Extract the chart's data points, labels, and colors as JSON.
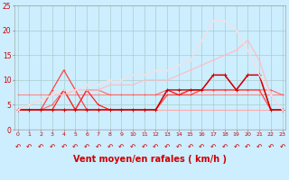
{
  "x": [
    0,
    1,
    2,
    3,
    4,
    5,
    6,
    7,
    8,
    9,
    10,
    11,
    12,
    13,
    14,
    15,
    16,
    17,
    18,
    19,
    20,
    21,
    22,
    23
  ],
  "series": [
    {
      "color": "#ffaaaa",
      "linewidth": 0.8,
      "markersize": 2.0,
      "y": [
        4,
        4,
        4,
        4,
        4,
        4,
        4,
        4,
        4,
        4,
        4,
        4,
        4,
        4,
        4,
        4,
        4,
        4,
        4,
        4,
        4,
        4,
        4,
        4
      ]
    },
    {
      "color": "#ff8888",
      "linewidth": 0.8,
      "markersize": 2.0,
      "y": [
        7,
        7,
        7,
        7,
        7,
        7,
        7,
        7,
        7,
        7,
        7,
        7,
        7,
        7,
        7,
        7,
        7,
        7,
        7,
        7,
        7,
        7,
        7,
        7
      ]
    },
    {
      "color": "#ff6666",
      "linewidth": 0.8,
      "markersize": 2.0,
      "y": [
        4,
        4,
        4,
        5,
        8,
        4,
        8,
        8,
        7,
        7,
        7,
        7,
        7,
        8,
        7,
        8,
        8,
        8,
        8,
        8,
        8,
        8,
        8,
        7
      ]
    },
    {
      "color": "#ff4444",
      "linewidth": 0.9,
      "markersize": 2.0,
      "y": [
        4,
        4,
        4,
        8,
        12,
        8,
        4,
        4,
        4,
        4,
        4,
        4,
        4,
        7,
        7,
        7,
        8,
        8,
        8,
        8,
        8,
        8,
        4,
        4
      ]
    },
    {
      "color": "#ff2222",
      "linewidth": 0.9,
      "markersize": 2.0,
      "y": [
        4,
        4,
        4,
        4,
        8,
        4,
        8,
        5,
        4,
        4,
        4,
        4,
        4,
        8,
        7,
        8,
        8,
        11,
        11,
        8,
        11,
        11,
        4,
        4
      ]
    },
    {
      "color": "#cc0000",
      "linewidth": 1.0,
      "markersize": 2.5,
      "y": [
        4,
        4,
        4,
        4,
        4,
        4,
        4,
        4,
        4,
        4,
        4,
        4,
        4,
        8,
        8,
        8,
        8,
        11,
        11,
        8,
        11,
        11,
        4,
        4
      ]
    },
    {
      "color": "#ffbbbb",
      "linewidth": 0.8,
      "markersize": 2.0,
      "y": [
        4,
        5,
        6,
        7,
        7,
        8,
        8,
        8,
        9,
        9,
        9,
        10,
        10,
        10,
        11,
        12,
        13,
        14,
        15,
        16,
        18,
        14,
        7,
        4
      ]
    },
    {
      "color": "#ffdddd",
      "linewidth": 0.8,
      "markersize": 2.0,
      "y": [
        4,
        5,
        6,
        7,
        8,
        8,
        9,
        9,
        10,
        10,
        11,
        11,
        12,
        12,
        13,
        14,
        18,
        22,
        22,
        20,
        16,
        11,
        7,
        4
      ]
    }
  ],
  "xlabel": "Vent moyen/en rafales ( km/h )",
  "xlim": [
    -0.3,
    23.3
  ],
  "ylim": [
    0,
    25
  ],
  "xticks": [
    0,
    1,
    2,
    3,
    4,
    5,
    6,
    7,
    8,
    9,
    10,
    11,
    12,
    13,
    14,
    15,
    16,
    17,
    18,
    19,
    20,
    21,
    22,
    23
  ],
  "yticks": [
    0,
    5,
    10,
    15,
    20,
    25
  ],
  "bg_color": "#cceeff",
  "grid_color": "#aacccc",
  "xlabel_color": "#cc0000",
  "tick_color": "#cc0000"
}
